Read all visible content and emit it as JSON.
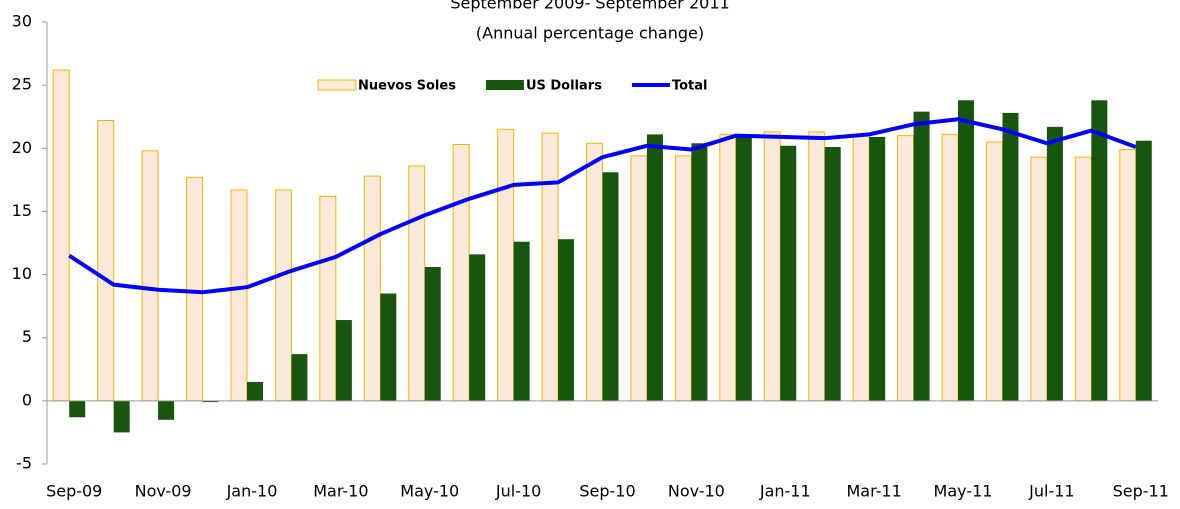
{
  "chart_data": {
    "type": "bar_line",
    "title": "September 2009- September 2011",
    "subtitle": "(Annual percentage change)",
    "categories": [
      "Sep-09",
      null,
      "Nov-09",
      null,
      "Jan-10",
      null,
      "Mar-10",
      null,
      "May-10",
      null,
      "Jul-10",
      null,
      "Sep-10",
      null,
      "Nov-10",
      null,
      "Jan-11",
      null,
      "Mar-11",
      null,
      "May-11",
      null,
      "Jul-11",
      null,
      "Sep-11"
    ],
    "series": [
      {
        "name": "Nuevos Soles",
        "kind": "bar",
        "color": "#fde9d9",
        "edge": "#f2b705",
        "values": [
          26.2,
          22.2,
          19.8,
          17.7,
          16.7,
          16.7,
          16.2,
          17.8,
          18.6,
          20.3,
          21.5,
          21.2,
          20.4,
          19.4,
          19.4,
          21.1,
          21.3,
          21.3,
          21.0,
          21.0,
          21.1,
          20.5,
          19.3,
          19.3,
          19.9
        ]
      },
      {
        "name": "US Dollars",
        "kind": "bar",
        "color": "#17560c",
        "values": [
          -1.3,
          -2.5,
          -1.5,
          -0.1,
          1.5,
          3.7,
          6.4,
          8.5,
          10.6,
          11.6,
          12.6,
          12.8,
          18.1,
          21.1,
          20.4,
          21.0,
          20.2,
          20.1,
          20.9,
          22.9,
          23.8,
          22.8,
          21.7,
          23.8,
          20.6
        ]
      },
      {
        "name": "Total",
        "kind": "line",
        "color": "#0000ff",
        "values": [
          11.5,
          9.2,
          8.8,
          8.6,
          9.0,
          10.3,
          11.4,
          13.2,
          14.7,
          16.0,
          17.1,
          17.3,
          19.3,
          20.2,
          19.9,
          21.0,
          20.9,
          20.8,
          21.1,
          21.9,
          22.3,
          21.5,
          20.4,
          21.4,
          20.1
        ]
      }
    ],
    "ylim": [
      -5,
      30
    ],
    "yticks": [
      -5,
      0,
      5,
      10,
      15,
      20,
      25,
      30
    ]
  }
}
